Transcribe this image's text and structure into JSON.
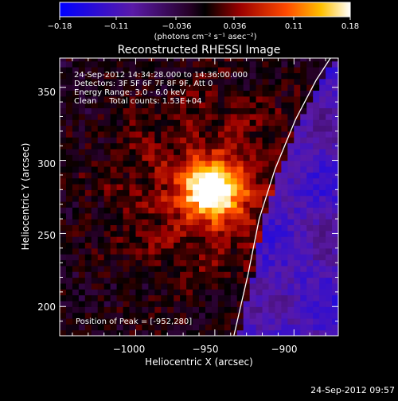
{
  "colorbar": {
    "ticks": [
      "−0.18",
      "−0.11",
      "−0.036",
      "0.036",
      "0.11",
      "0.18"
    ],
    "tick_values": [
      -0.18,
      -0.11,
      -0.036,
      0.036,
      0.11,
      0.18
    ],
    "range": [
      -0.18,
      0.18
    ],
    "unit_label": "(photons cm⁻² s⁻¹ asec⁻²)"
  },
  "chart_data": {
    "type": "heatmap",
    "title": "Reconstructed RHESSI Image",
    "xlabel": "Heliocentric X (arcsec)",
    "ylabel": "Heliocentric Y (arcsec)",
    "xlim": [
      -1048,
      -872
    ],
    "ylim": [
      180,
      370
    ],
    "xticks": [
      -1000,
      -950,
      -900
    ],
    "xtick_labels": [
      "−1000",
      "−950",
      "−900"
    ],
    "yticks": [
      200,
      250,
      300,
      350
    ],
    "ytick_labels": [
      "200",
      "250",
      "300",
      "350"
    ],
    "annotations": [
      "24-Sep-2012 14:34:28.000 to 14:36:00.000",
      "Detectors: 3F 5F 6F 7F 8F 9F, Att 0",
      "Energy Range: 3.0 - 6.0 keV",
      "Clean     Total counts: 1.53E+04"
    ],
    "peak_label": "Position of Peak = [-952,280]",
    "peak": [
      -952,
      280
    ],
    "peak_value": 0.18,
    "limb_curve": [
      [
        -938,
        180
      ],
      [
        -929,
        222
      ],
      [
        -922,
        260
      ],
      [
        -912,
        294
      ],
      [
        -899,
        328
      ],
      [
        -886,
        355
      ],
      [
        -877,
        370
      ]
    ],
    "colormap": "rhessi-hot (blue-purple negative, black zero, red-orange-yellow-white positive)"
  },
  "footer": {
    "timestamp": "24-Sep-2012 09:57"
  }
}
